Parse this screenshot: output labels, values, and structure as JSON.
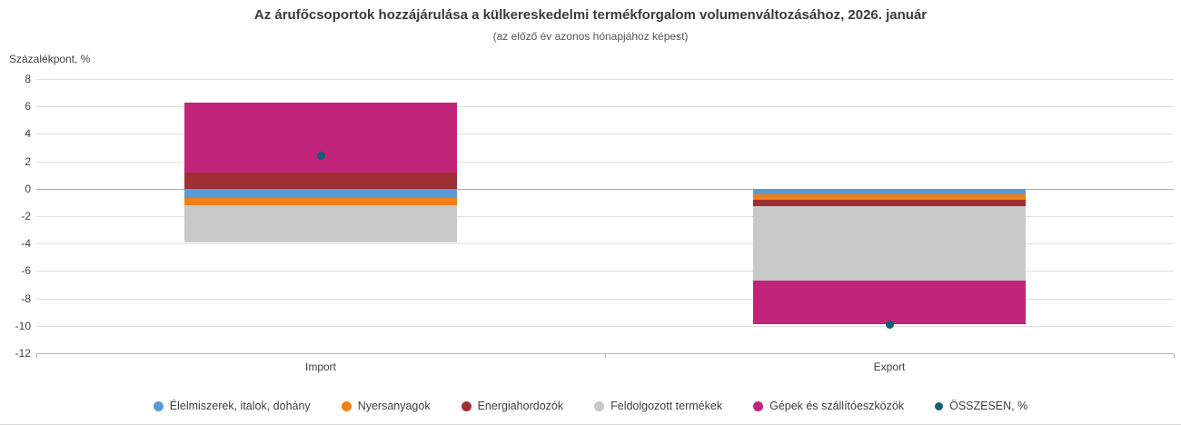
{
  "title": "Az árufőcsoportok hozzájárulása a külkereskedelmi termékforgalom volumenváltozásához, 2026. január",
  "subtitle": "(az előző év azonos hónapjához képest)",
  "y_axis_label": "Százalékpont, %",
  "chart_data": {
    "type": "bar",
    "stacked": true,
    "grid": true,
    "legend_position": "bottom",
    "categories": [
      "Import",
      "Export"
    ],
    "series": [
      {
        "name": "Élelmiszerek, italok, dohány",
        "color": "#5b9bd5",
        "values": [
          -0.7,
          -0.4
        ]
      },
      {
        "name": "Nyersanyagok",
        "color": "#f08019",
        "values": [
          -0.5,
          -0.4
        ]
      },
      {
        "name": "Energiahordozók",
        "color": "#9e2f34",
        "values": [
          1.2,
          -0.5
        ]
      },
      {
        "name": "Feldolgozott termékek",
        "color": "#c9c9c9",
        "values": [
          -2.7,
          -5.4
        ]
      },
      {
        "name": "Gépek és szállítóeszközök",
        "color": "#c02579",
        "values": [
          5.1,
          -3.2
        ]
      }
    ],
    "total_series": {
      "name": "ÖSSZESEN, %",
      "color": "#115e77",
      "values": [
        2.4,
        -9.9
      ]
    },
    "ylim": [
      -12,
      8
    ],
    "ytick_step": 2
  }
}
